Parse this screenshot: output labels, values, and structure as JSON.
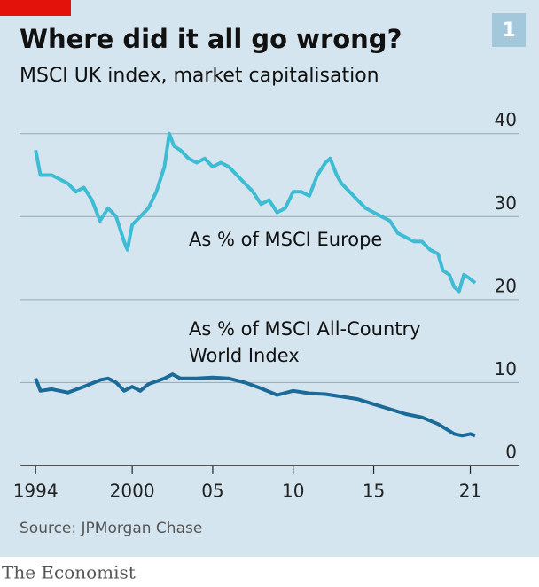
{
  "chart_data": {
    "type": "line",
    "title": "Where did it all go wrong?",
    "subtitle": "MSCI UK index, market capitalisation",
    "badge": "1",
    "annotations": [
      "As % of MSCI Europe",
      "As % of MSCI All-Country",
      "World Index"
    ],
    "source": "Source: JPMorgan Chase",
    "brand": "The Economist",
    "xlim": [
      1993,
      2024
    ],
    "xticks": [
      1994,
      2000,
      {
        "value": 2005,
        "label": "05"
      },
      {
        "value": 2010,
        "label": "10"
      },
      {
        "value": 2015,
        "label": "15"
      },
      {
        "value": 2021,
        "label": "21"
      }
    ],
    "ylim": [
      0,
      42
    ],
    "yticks": [
      0,
      10,
      20,
      30,
      40
    ],
    "grid": true,
    "series": [
      {
        "color": "#3ebcd4",
        "x": [
          1994.0,
          1994.3,
          1995,
          1996,
          1996.5,
          1997,
          1997.5,
          1998,
          1998.5,
          1999,
          1999.5,
          1999.7,
          2000,
          2000.5,
          2001,
          2001.5,
          2002,
          2002.3,
          2002.6,
          2003,
          2003.5,
          2004,
          2004.5,
          2005,
          2005.5,
          2006,
          2006.5,
          2007,
          2007.5,
          2008,
          2008.5,
          2009,
          2009.5,
          2010,
          2010.5,
          2011,
          2011.5,
          2012,
          2012.3,
          2012.7,
          2013,
          2013.5,
          2014,
          2014.5,
          2015,
          2015.5,
          2016,
          2016.5,
          2017,
          2017.5,
          2018,
          2018.5,
          2019,
          2019.3,
          2019.7,
          2020,
          2020.3,
          2020.6,
          2021,
          2021.3
        ],
        "values": [
          38,
          35,
          35,
          34,
          33,
          33.5,
          32,
          29.5,
          31,
          30,
          27,
          26,
          29,
          30,
          31,
          33,
          36,
          40,
          38.5,
          38,
          37,
          36.5,
          37,
          36,
          36.5,
          36,
          35,
          34,
          33,
          31.5,
          32,
          30.5,
          31,
          33,
          33,
          32.5,
          35,
          36.5,
          37,
          35,
          34,
          33,
          32,
          31,
          30.5,
          30,
          29.5,
          28,
          27.5,
          27,
          27,
          26,
          25.5,
          23.5,
          23,
          21.5,
          21,
          23,
          22.5,
          22
        ]
      },
      {
        "color": "#1b6a97",
        "x": [
          1994.0,
          1994.3,
          1995,
          1996,
          1997,
          1998,
          1998.5,
          1999,
          1999.5,
          2000,
          2000.5,
          2001,
          2002,
          2002.5,
          2003,
          2004,
          2005,
          2006,
          2007,
          2008,
          2009,
          2010,
          2011,
          2012,
          2013,
          2014,
          2015,
          2016,
          2017,
          2018,
          2019,
          2020,
          2020.5,
          2021,
          2021.3
        ],
        "values": [
          10.5,
          9,
          9.2,
          8.8,
          9.5,
          10.3,
          10.5,
          10,
          9,
          9.5,
          9,
          9.8,
          10.5,
          11,
          10.5,
          10.5,
          10.6,
          10.5,
          10,
          9.3,
          8.5,
          9,
          8.7,
          8.6,
          8.3,
          8,
          7.4,
          6.8,
          6.2,
          5.8,
          5,
          3.8,
          3.6,
          3.8,
          3.6
        ]
      }
    ]
  }
}
